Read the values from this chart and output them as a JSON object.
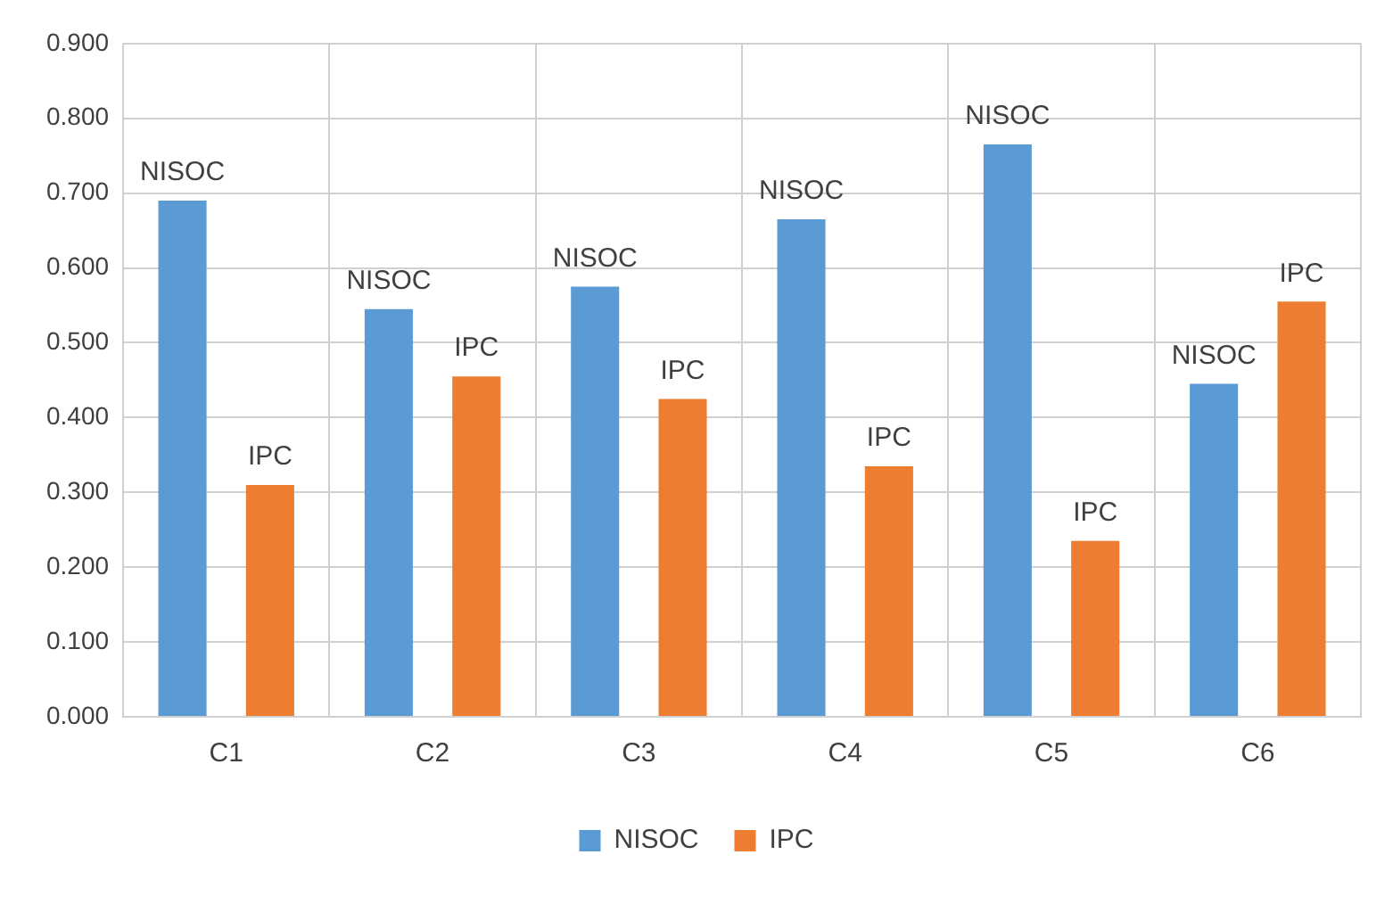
{
  "chart_data": {
    "type": "bar",
    "categories": [
      "C1",
      "C2",
      "C3",
      "C4",
      "C5",
      "C6"
    ],
    "series": [
      {
        "name": "NISOC",
        "color": "#5b9bd5",
        "values": [
          0.69,
          0.545,
          0.575,
          0.665,
          0.765,
          0.445
        ],
        "value_labels": [
          "NISOC",
          "NISOC",
          "NISOC",
          "NISOC",
          "NISOC",
          "NISOC"
        ]
      },
      {
        "name": "IPC",
        "color": "#ed7d31",
        "values": [
          0.31,
          0.455,
          0.425,
          0.335,
          0.235,
          0.555
        ],
        "value_labels": [
          "IPC",
          "IPC",
          "IPC",
          "IPC",
          "IPC",
          "IPC"
        ]
      }
    ],
    "ylim": [
      0,
      0.9
    ],
    "yticks": [
      {
        "value": 0,
        "label": "0.000"
      },
      {
        "value": 0.1,
        "label": "0.100"
      },
      {
        "value": 0.2,
        "label": "0.200"
      },
      {
        "value": 0.3,
        "label": "0.300"
      },
      {
        "value": 0.4,
        "label": "0.400"
      },
      {
        "value": 0.5,
        "label": "0.500"
      },
      {
        "value": 0.6,
        "label": "0.600"
      },
      {
        "value": 0.7,
        "label": "0.700"
      },
      {
        "value": 0.8,
        "label": "0.800"
      },
      {
        "value": 0.9,
        "label": "0.900"
      }
    ],
    "grid": true,
    "legend": "bottom"
  }
}
